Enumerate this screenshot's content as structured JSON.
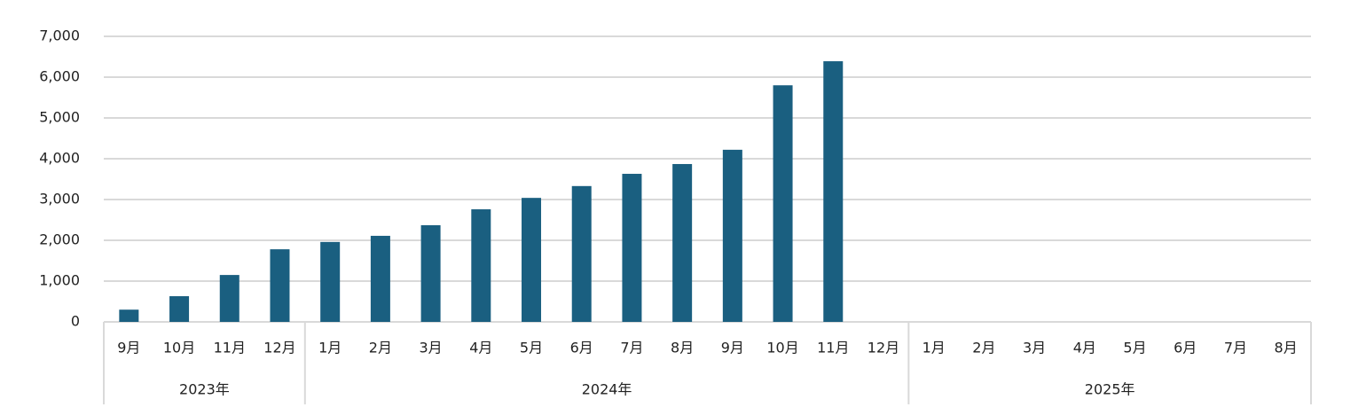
{
  "chart_data": {
    "type": "bar",
    "categories": [
      "9月",
      "10月",
      "11月",
      "12月",
      "1月",
      "2月",
      "3月",
      "4月",
      "5月",
      "6月",
      "7月",
      "8月",
      "9月",
      "10月",
      "11月",
      "12月",
      "1月",
      "2月",
      "3月",
      "4月",
      "5月",
      "6月",
      "7月",
      "8月"
    ],
    "values": [
      300,
      630,
      1150,
      1780,
      1960,
      2110,
      2370,
      2760,
      3040,
      3330,
      3630,
      3870,
      4220,
      5800,
      6390,
      null,
      null,
      null,
      null,
      null,
      null,
      null,
      null,
      null
    ],
    "year_groups": [
      {
        "label": "2023年",
        "count": 4
      },
      {
        "label": "2024年",
        "count": 12
      },
      {
        "label": "2025年",
        "count": 8
      }
    ],
    "color": "#1a5f80",
    "ylim": [
      0,
      7000
    ],
    "yticks": [
      0,
      {
        "value": 1000,
        "label": "1,000"
      },
      {
        "value": 2000,
        "label": "2,000"
      },
      {
        "value": 3000,
        "label": "3,000"
      },
      {
        "value": 4000,
        "label": "4,000"
      },
      {
        "value": 5000,
        "label": "5,000"
      },
      {
        "value": 6000,
        "label": "6,000"
      },
      {
        "value": 7000,
        "label": "7,000"
      }
    ],
    "grid": true
  }
}
